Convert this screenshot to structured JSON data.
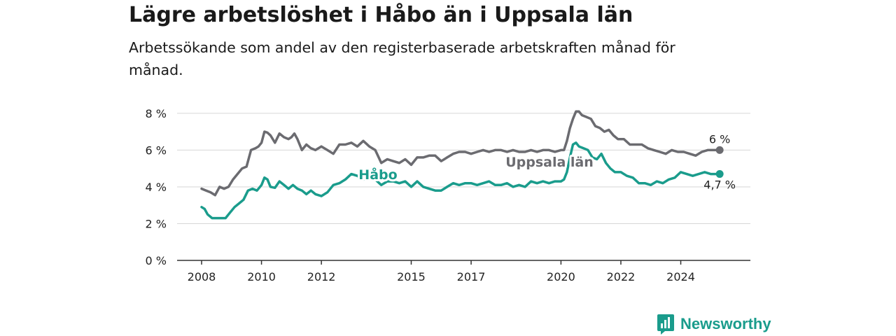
{
  "header": {
    "title": "Lägre arbetslöshet i Håbo än i Uppsala län",
    "subtitle": "Arbetssökande som andel av den registerbaserade arbetskraften månad för månad."
  },
  "brand": {
    "name": "Newsworthy",
    "icon": "bar-chart-icon",
    "color": "#1a9c8c"
  },
  "chart_data": {
    "type": "line",
    "xlim": [
      2007.9,
      2025.7
    ],
    "ylim": [
      0,
      8.3
    ],
    "yticks": [
      0,
      2,
      4,
      6,
      8
    ],
    "ytick_labels": [
      "0 %",
      "2 %",
      "4 %",
      "6 %",
      "8 %"
    ],
    "xticks": [
      2008,
      2010,
      2012,
      2015,
      2017,
      2020,
      2022,
      2024
    ],
    "xtick_labels": [
      "2008",
      "2010",
      "2012",
      "2015",
      "2017",
      "2020",
      "2022",
      "2024"
    ],
    "grid": true,
    "series": [
      {
        "name": "Uppsala län",
        "color": "#6b6b70",
        "end_label": "6 %",
        "x": [
          2008.0,
          2008.15,
          2008.3,
          2008.45,
          2008.6,
          2008.75,
          2008.9,
          2009.05,
          2009.2,
          2009.35,
          2009.5,
          2009.65,
          2009.8,
          2009.9,
          2010.0,
          2010.1,
          2010.2,
          2010.3,
          2010.45,
          2010.6,
          2010.75,
          2010.9,
          2011.0,
          2011.1,
          2011.2,
          2011.35,
          2011.5,
          2011.65,
          2011.8,
          2012.0,
          2012.2,
          2012.4,
          2012.6,
          2012.8,
          2013.0,
          2013.2,
          2013.4,
          2013.6,
          2013.8,
          2014.0,
          2014.2,
          2014.4,
          2014.6,
          2014.8,
          2015.0,
          2015.2,
          2015.4,
          2015.6,
          2015.8,
          2016.0,
          2016.2,
          2016.4,
          2016.6,
          2016.8,
          2017.0,
          2017.2,
          2017.4,
          2017.6,
          2017.8,
          2018.0,
          2018.2,
          2018.4,
          2018.6,
          2018.8,
          2019.0,
          2019.2,
          2019.4,
          2019.6,
          2019.8,
          2020.0,
          2020.1,
          2020.2,
          2020.3,
          2020.4,
          2020.5,
          2020.6,
          2020.7,
          2020.85,
          2021.0,
          2021.15,
          2021.3,
          2021.45,
          2021.6,
          2021.75,
          2021.9,
          2022.1,
          2022.3,
          2022.5,
          2022.7,
          2022.9,
          2023.1,
          2023.3,
          2023.5,
          2023.7,
          2023.9,
          2024.1,
          2024.3,
          2024.5,
          2024.7,
          2024.9,
          2025.1,
          2025.3
        ],
        "values": [
          3.9,
          3.8,
          3.7,
          3.55,
          4.0,
          3.9,
          4.0,
          4.4,
          4.7,
          5.0,
          5.1,
          6.0,
          6.1,
          6.2,
          6.4,
          7.0,
          6.95,
          6.8,
          6.4,
          6.9,
          6.7,
          6.6,
          6.7,
          6.9,
          6.6,
          6.0,
          6.3,
          6.1,
          6.0,
          6.2,
          6.0,
          5.8,
          6.3,
          6.3,
          6.4,
          6.2,
          6.5,
          6.2,
          6.0,
          5.3,
          5.5,
          5.4,
          5.3,
          5.5,
          5.2,
          5.6,
          5.6,
          5.7,
          5.7,
          5.4,
          5.6,
          5.8,
          5.9,
          5.9,
          5.8,
          5.9,
          6.0,
          5.9,
          6.0,
          6.0,
          5.9,
          6.0,
          5.9,
          5.9,
          6.0,
          5.9,
          6.0,
          6.0,
          5.9,
          6.0,
          6.0,
          6.5,
          7.2,
          7.7,
          8.1,
          8.1,
          7.9,
          7.8,
          7.7,
          7.3,
          7.2,
          7.0,
          7.1,
          6.8,
          6.6,
          6.6,
          6.3,
          6.3,
          6.3,
          6.1,
          6.0,
          5.9,
          5.8,
          6.0,
          5.9,
          5.9,
          5.8,
          5.7,
          5.9,
          6.0,
          6.0,
          6.0
        ]
      },
      {
        "name": "Håbo",
        "color": "#1a9c8c",
        "end_label": "4,7 %",
        "x": [
          2008.0,
          2008.1,
          2008.2,
          2008.35,
          2008.5,
          2008.65,
          2008.8,
          2008.95,
          2009.1,
          2009.25,
          2009.4,
          2009.55,
          2009.7,
          2009.85,
          2010.0,
          2010.1,
          2010.2,
          2010.3,
          2010.45,
          2010.6,
          2010.75,
          2010.9,
          2011.05,
          2011.2,
          2011.35,
          2011.5,
          2011.65,
          2011.8,
          2012.0,
          2012.2,
          2012.4,
          2012.6,
          2012.8,
          2013.0,
          2013.2,
          2013.4,
          2013.6,
          2013.8,
          2014.0,
          2014.2,
          2014.4,
          2014.6,
          2014.8,
          2015.0,
          2015.2,
          2015.4,
          2015.6,
          2015.8,
          2016.0,
          2016.2,
          2016.4,
          2016.6,
          2016.8,
          2017.0,
          2017.2,
          2017.4,
          2017.6,
          2017.8,
          2018.0,
          2018.2,
          2018.4,
          2018.6,
          2018.8,
          2019.0,
          2019.2,
          2019.4,
          2019.6,
          2019.8,
          2020.0,
          2020.1,
          2020.2,
          2020.3,
          2020.4,
          2020.5,
          2020.6,
          2020.75,
          2020.9,
          2021.05,
          2021.2,
          2021.35,
          2021.5,
          2021.65,
          2021.8,
          2022.0,
          2022.2,
          2022.4,
          2022.6,
          2022.8,
          2023.0,
          2023.2,
          2023.4,
          2023.6,
          2023.8,
          2024.0,
          2024.2,
          2024.4,
          2024.6,
          2024.8,
          2025.0,
          2025.3
        ],
        "values": [
          2.9,
          2.8,
          2.5,
          2.3,
          2.3,
          2.3,
          2.3,
          2.6,
          2.9,
          3.1,
          3.3,
          3.8,
          3.9,
          3.8,
          4.1,
          4.5,
          4.4,
          4.0,
          3.95,
          4.3,
          4.1,
          3.9,
          4.1,
          3.9,
          3.8,
          3.6,
          3.8,
          3.6,
          3.5,
          3.7,
          4.1,
          4.2,
          4.4,
          4.7,
          4.6,
          4.4,
          4.5,
          4.4,
          4.1,
          4.3,
          4.3,
          4.2,
          4.3,
          4.0,
          4.3,
          4.0,
          3.9,
          3.8,
          3.8,
          4.0,
          4.2,
          4.1,
          4.2,
          4.2,
          4.1,
          4.2,
          4.3,
          4.1,
          4.1,
          4.2,
          4.0,
          4.1,
          4.0,
          4.3,
          4.2,
          4.3,
          4.2,
          4.3,
          4.3,
          4.4,
          4.8,
          5.6,
          6.3,
          6.4,
          6.2,
          6.1,
          6.0,
          5.6,
          5.5,
          5.8,
          5.3,
          5.0,
          4.8,
          4.8,
          4.6,
          4.5,
          4.2,
          4.2,
          4.1,
          4.3,
          4.2,
          4.4,
          4.5,
          4.8,
          4.7,
          4.6,
          4.7,
          4.8,
          4.7,
          4.7
        ]
      }
    ]
  }
}
